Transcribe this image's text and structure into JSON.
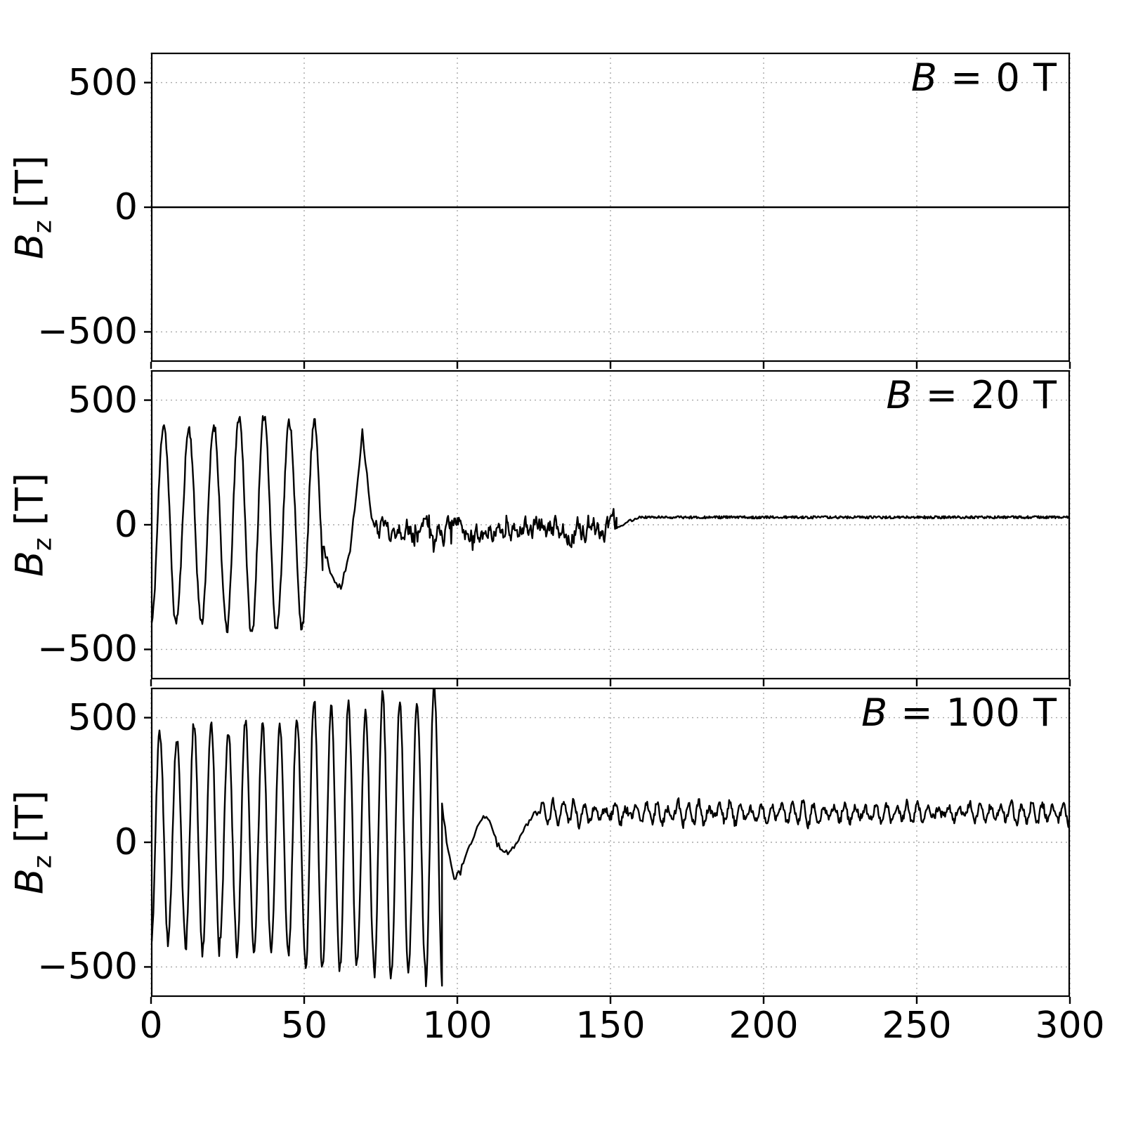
{
  "chart_data": {
    "type": "line",
    "title": "",
    "xlabel": "",
    "ylabel_var": "B",
    "ylabel_sub": "z",
    "ylabel_unit": " [T]",
    "xlim": [
      0,
      300
    ],
    "ylim": [
      -620,
      620
    ],
    "x_ticks": [
      0,
      50,
      100,
      150,
      200,
      250,
      300
    ],
    "x_tick_labels": [
      "0",
      "50",
      "100",
      "150",
      "200",
      "250",
      "300"
    ],
    "y_ticks": [
      500,
      0,
      -500
    ],
    "y_tick_labels": [
      "500",
      "0",
      "−500"
    ],
    "grid": true,
    "legend": "none",
    "line_color": "#000000",
    "grid_color": "#a8a8a8",
    "axis_color": "#000000",
    "background_color": "#ffffff",
    "panels": [
      {
        "annotation_var": "B",
        "annotation_rest": " = 0 T",
        "seed": 3,
        "segments": [
          {
            "type": "flat",
            "x0": 0,
            "x1": 300,
            "y": 0,
            "noise": 0
          }
        ]
      },
      {
        "annotation_var": "B",
        "annotation_rest": " = 20 T",
        "seed": 11,
        "segments": [
          {
            "type": "osc",
            "x0": 0,
            "x1": 56,
            "period": 8.2,
            "phase": -1.6,
            "mean": 0,
            "amp_start": 400,
            "amp_end": 450,
            "amp_jitter": 0.15,
            "noise": 20
          },
          {
            "type": "anchors",
            "noise": 15,
            "points": [
              [
                56,
                -80
              ],
              [
                59,
                -200
              ],
              [
                62,
                -260
              ],
              [
                65,
                -100
              ],
              [
                67,
                120
              ],
              [
                69,
                380
              ],
              [
                70.5,
                200
              ],
              [
                72,
                30
              ],
              [
                73,
                -20
              ]
            ]
          },
          {
            "type": "noise",
            "x0": 73,
            "x1": 152,
            "mean": -15,
            "amp": 50,
            "spike": 90,
            "spike_p": 0.04
          },
          {
            "type": "anchors",
            "noise": 8,
            "points": [
              [
                152,
                -20
              ],
              [
                156,
                15
              ],
              [
                160,
                30
              ]
            ]
          },
          {
            "type": "flat",
            "x0": 160,
            "x1": 300,
            "y": 30,
            "noise": 5
          }
        ]
      },
      {
        "annotation_var": "B",
        "annotation_rest": " = 100 T",
        "seed": 5,
        "segments": [
          {
            "type": "osc",
            "x0": 0,
            "x1": 95,
            "period": 5.6,
            "phase": -1.6,
            "mean": 20,
            "amp_start": 400,
            "amp_end": 590,
            "amp_jitter": 0.12,
            "noise": 20
          },
          {
            "type": "anchors",
            "noise": 12,
            "points": [
              [
                95,
                150
              ],
              [
                97,
                -40
              ],
              [
                99,
                -140
              ],
              [
                101,
                -120
              ],
              [
                103,
                -40
              ],
              [
                105,
                20
              ],
              [
                107,
                80
              ],
              [
                109,
                100
              ],
              [
                111,
                70
              ],
              [
                113,
                -10
              ],
              [
                115,
                -30
              ],
              [
                117,
                -40
              ],
              [
                119,
                -10
              ],
              [
                121,
                30
              ],
              [
                123,
                80
              ],
              [
                125,
                110
              ],
              [
                127,
                120
              ]
            ]
          },
          {
            "type": "osc",
            "x0": 127,
            "x1": 300,
            "period": 3.4,
            "phase": 0,
            "mean": 118,
            "amp_start": 32,
            "amp_end": 28,
            "amp_jitter": 0.6,
            "noise": 16
          }
        ]
      }
    ]
  }
}
